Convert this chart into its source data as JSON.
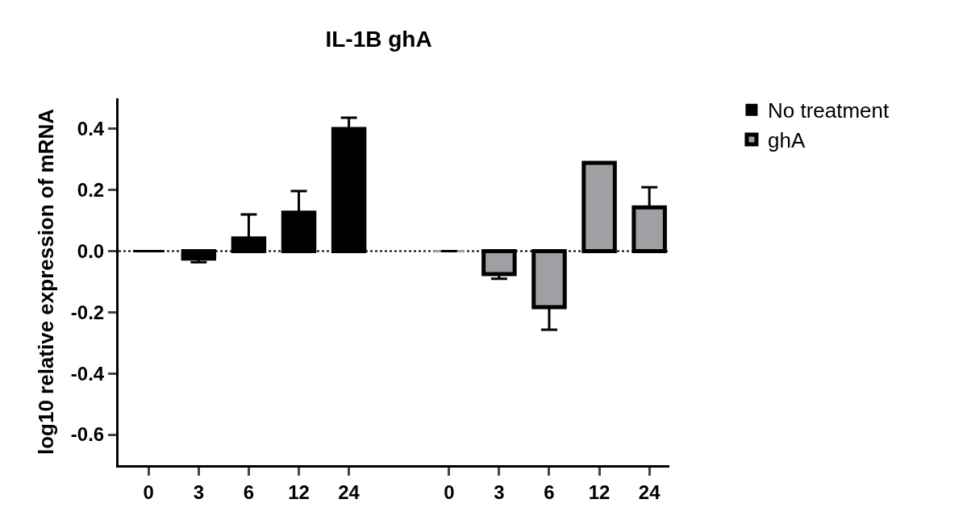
{
  "chart_data": {
    "type": "bar",
    "title": "IL-1B ghA",
    "ylabel": "log10 relative expression of mRNA",
    "categories": [
      "0",
      "3",
      "6",
      "12",
      "24",
      null,
      "0",
      "3",
      "6",
      "12",
      "24"
    ],
    "series": [
      {
        "name": "No treatment",
        "color": "#000000",
        "values": [
          0,
          -0.024,
          0.042,
          0.126,
          0.4,
          null,
          null,
          null,
          null,
          null,
          null
        ],
        "errors": [
          null,
          [
            -0.036,
            -0.024
          ],
          [
            0.042,
            0.12
          ],
          [
            0.126,
            0.197
          ],
          [
            0.4,
            0.437
          ],
          null,
          null,
          null,
          null,
          null,
          null
        ]
      },
      {
        "name": "ghA",
        "color": "#a0a0a4",
        "values": [
          null,
          null,
          null,
          null,
          null,
          null,
          0,
          -0.075,
          -0.183,
          0.289,
          0.143
        ],
        "errors": [
          null,
          null,
          null,
          null,
          null,
          null,
          null,
          [
            -0.09,
            -0.075
          ],
          [
            -0.257,
            -0.183
          ],
          null,
          [
            0.143,
            0.209
          ]
        ]
      }
    ],
    "ylim": [
      -0.7,
      0.5
    ],
    "yticks": [
      {
        "value": -0.6,
        "label": "-0.6"
      },
      {
        "value": -0.4,
        "label": "-0.4"
      },
      {
        "value": -0.2,
        "label": "-0.2"
      },
      {
        "value": 0,
        "label": "0.0"
      },
      {
        "value": 0.2,
        "label": "0.2"
      },
      {
        "value": 0.4,
        "label": "0.4"
      }
    ],
    "ref_lines": [
      {
        "axis": "y",
        "value": 0,
        "line_style": "dotted"
      }
    ],
    "grid": false,
    "legend": "top right"
  }
}
